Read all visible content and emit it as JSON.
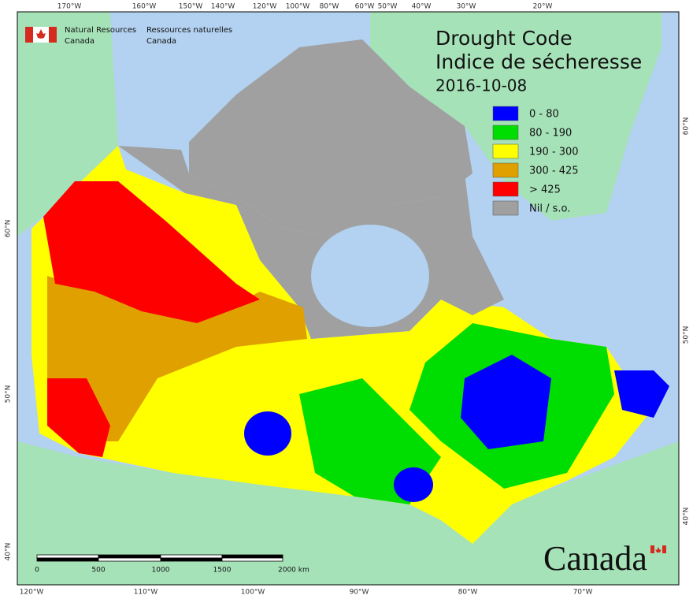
{
  "header": {
    "agency_en": [
      "Natural Resources",
      "Canada"
    ],
    "agency_fr": [
      "Ressources naturelles",
      "Canada"
    ]
  },
  "title": [
    "Drought Code",
    "Indice de sécheresse"
  ],
  "date": "2016-10-08",
  "legend": [
    {
      "label": "0 - 80",
      "color": "#0000ff"
    },
    {
      "label": "80 - 190",
      "color": "#00dd00"
    },
    {
      "label": "190 - 300",
      "color": "#ffff00"
    },
    {
      "label": "300 - 425",
      "color": "#e0a000"
    },
    {
      "label": "> 425",
      "color": "#ff0000"
    },
    {
      "label": "Nil / s.o.",
      "color": "#a0a0a0"
    }
  ],
  "graticule": {
    "top": [
      "170°W",
      "160°W",
      "150°W",
      "140°W",
      "120°W",
      "100°W",
      "80°W",
      "60°W",
      "50°W",
      "40°W",
      "30°W",
      "20°W"
    ],
    "bottom": [
      "120°W",
      "110°W",
      "100°W",
      "90°W",
      "80°W",
      "70°W"
    ],
    "left": [
      "60°N",
      "50°N",
      "40°N"
    ],
    "right": [
      "60°N",
      "50°N",
      "40°N"
    ]
  },
  "scale_bar": [
    "0",
    "500",
    "1000",
    "1500",
    "2000 km"
  ],
  "wordmark": "Canada"
}
